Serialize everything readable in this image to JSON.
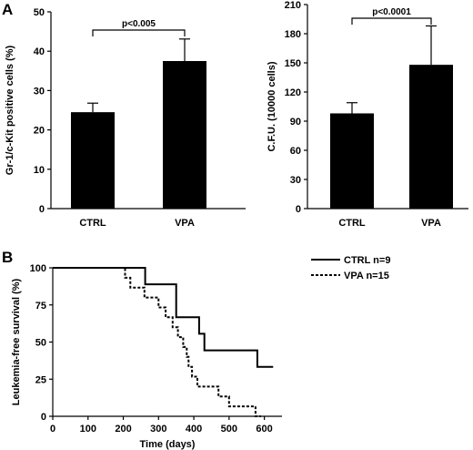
{
  "panels": {
    "a_label": "A",
    "b_label": "B"
  },
  "chart_data": [
    {
      "type": "bar",
      "categories": [
        "CTRL",
        "VPA"
      ],
      "values": [
        24.5,
        37.5
      ],
      "errors": [
        2.3,
        5.6
      ],
      "ylabel": "Gr-1/c-Kit positive cells (%)",
      "xlabel": "",
      "ylim": [
        0,
        50
      ],
      "yticks": [
        0,
        10,
        20,
        30,
        40,
        50
      ],
      "annotation": "p<0.005",
      "grid": false
    },
    {
      "type": "bar",
      "categories": [
        "CTRL",
        "VPA"
      ],
      "values": [
        98,
        148
      ],
      "errors": [
        11,
        40
      ],
      "ylabel": "C.F.U. (10000 cells)",
      "xlabel": "",
      "ylim": [
        0,
        210
      ],
      "yticks": [
        0,
        30,
        60,
        90,
        120,
        150,
        180,
        210
      ],
      "annotation": "p<0.0001",
      "grid": false
    },
    {
      "type": "line",
      "subtype": "kaplan-meier",
      "xlabel": "Time (days)",
      "ylabel": "Leukemia-free survival (%)",
      "xlim": [
        0,
        650
      ],
      "ylim": [
        0,
        100
      ],
      "xticks": [
        0,
        100,
        200,
        300,
        400,
        500,
        600
      ],
      "yticks": [
        0,
        25,
        50,
        75,
        100
      ],
      "legend_position": "top-right",
      "grid": false,
      "series": [
        {
          "name": "CTRL n=9",
          "style": "solid",
          "points": [
            [
              0,
              100
            ],
            [
              262,
              100
            ],
            [
              262,
              88.9
            ],
            [
              350,
              88.9
            ],
            [
              350,
              66.7
            ],
            [
              415,
              66.7
            ],
            [
              415,
              55.6
            ],
            [
              430,
              55.6
            ],
            [
              430,
              44.4
            ],
            [
              580,
              44.4
            ],
            [
              580,
              33.3
            ],
            [
              625,
              33.3
            ]
          ]
        },
        {
          "name": "VPA n=15",
          "style": "dashed",
          "points": [
            [
              0,
              100
            ],
            [
              205,
              100
            ],
            [
              205,
              93.3
            ],
            [
              220,
              93.3
            ],
            [
              220,
              86.7
            ],
            [
              260,
              86.7
            ],
            [
              260,
              80
            ],
            [
              300,
              80
            ],
            [
              300,
              73.3
            ],
            [
              320,
              73.3
            ],
            [
              320,
              66.7
            ],
            [
              340,
              66.7
            ],
            [
              340,
              60
            ],
            [
              355,
              60
            ],
            [
              355,
              53.3
            ],
            [
              370,
              53.3
            ],
            [
              370,
              46.7
            ],
            [
              380,
              46.7
            ],
            [
              380,
              40
            ],
            [
              385,
              40
            ],
            [
              385,
              33.3
            ],
            [
              395,
              33.3
            ],
            [
              395,
              26.7
            ],
            [
              410,
              26.7
            ],
            [
              410,
              20
            ],
            [
              470,
              20
            ],
            [
              470,
              13.3
            ],
            [
              500,
              13.3
            ],
            [
              500,
              6.7
            ],
            [
              575,
              6.7
            ],
            [
              575,
              0
            ],
            [
              590,
              0
            ]
          ]
        }
      ]
    }
  ]
}
